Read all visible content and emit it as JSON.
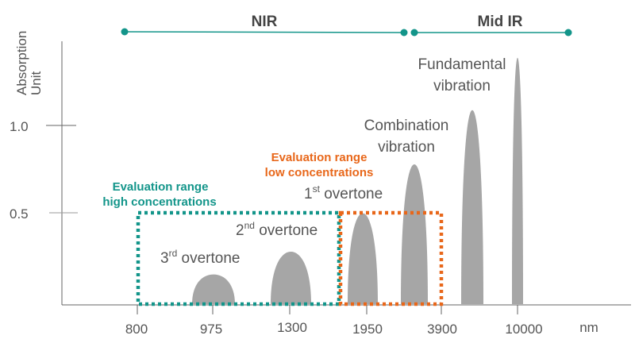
{
  "colors": {
    "teal": "#13958a",
    "orange": "#e8671a",
    "peak": "#a6a6a6",
    "axis": "#666666",
    "text": "#555555"
  },
  "y_axis": {
    "label_line1": "Absorption",
    "label_line2": "Unit",
    "ticks": [
      "1.0",
      "0.5"
    ]
  },
  "x_axis": {
    "ticks": [
      "800",
      "975",
      "1300",
      "1950",
      "3900",
      "10000"
    ],
    "unit": "nm"
  },
  "ranges": {
    "nir": "NIR",
    "mid_ir": "Mid IR"
  },
  "peaks": [
    {
      "label": "3",
      "sup": "rd",
      "suffix": " overtone",
      "height": 0.17
    },
    {
      "label": "2",
      "sup": "nd",
      "suffix": " overtone",
      "height": 0.3
    },
    {
      "label": "1",
      "sup": "st",
      "suffix": " overtone",
      "height": 0.52
    },
    {
      "label_line1": "Combination",
      "label_line2": "vibration",
      "height": 0.8
    },
    {
      "height": 1.11
    },
    {
      "label_line1": "Fundamental",
      "label_line2": "vibration",
      "height": 1.41
    }
  ],
  "evaluation_high": {
    "line1": "Evaluation range",
    "line2": "high concentrations"
  },
  "evaluation_low": {
    "line1": "Evaluation range",
    "line2": "low concentrations"
  }
}
